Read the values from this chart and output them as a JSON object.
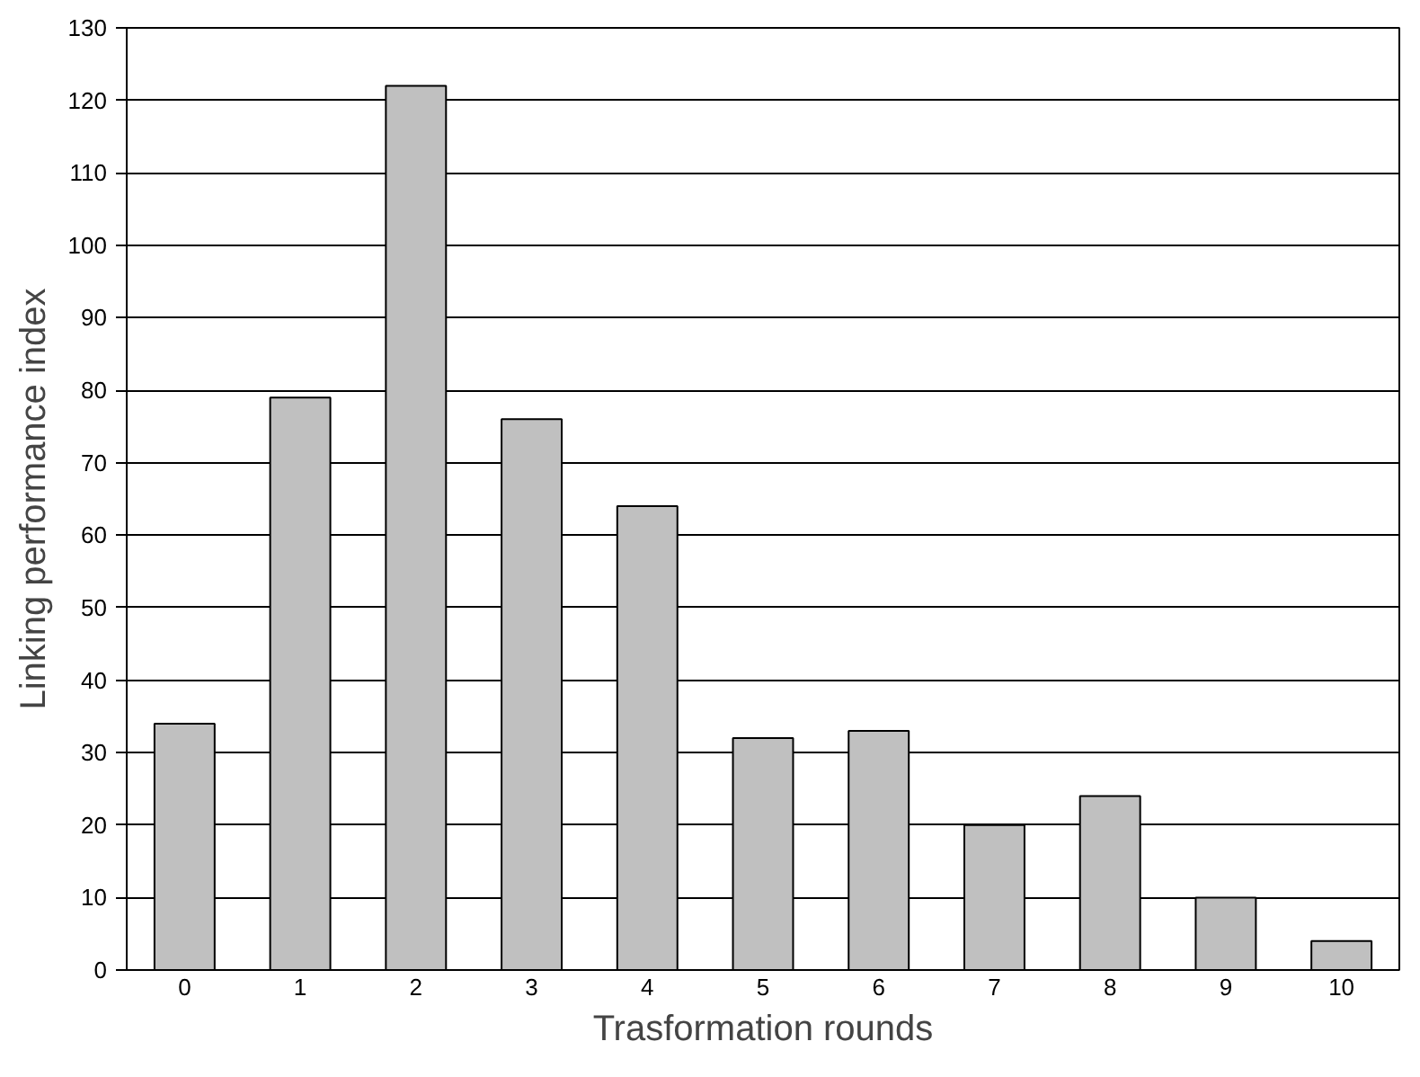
{
  "chart_data": {
    "type": "bar",
    "xlabel": "Trasformation rounds",
    "ylabel": "Linking performance index",
    "categories": [
      "0",
      "1",
      "2",
      "3",
      "4",
      "5",
      "6",
      "7",
      "8",
      "9",
      "10"
    ],
    "values": [
      34,
      79,
      122,
      76,
      64,
      32,
      33,
      20,
      24,
      10,
      4
    ],
    "color": "#c0c0c0",
    "ylim": [
      0,
      130
    ],
    "yticks": [
      0,
      10,
      20,
      30,
      40,
      50,
      60,
      70,
      80,
      90,
      100,
      110,
      120,
      130
    ],
    "grid": "y"
  }
}
